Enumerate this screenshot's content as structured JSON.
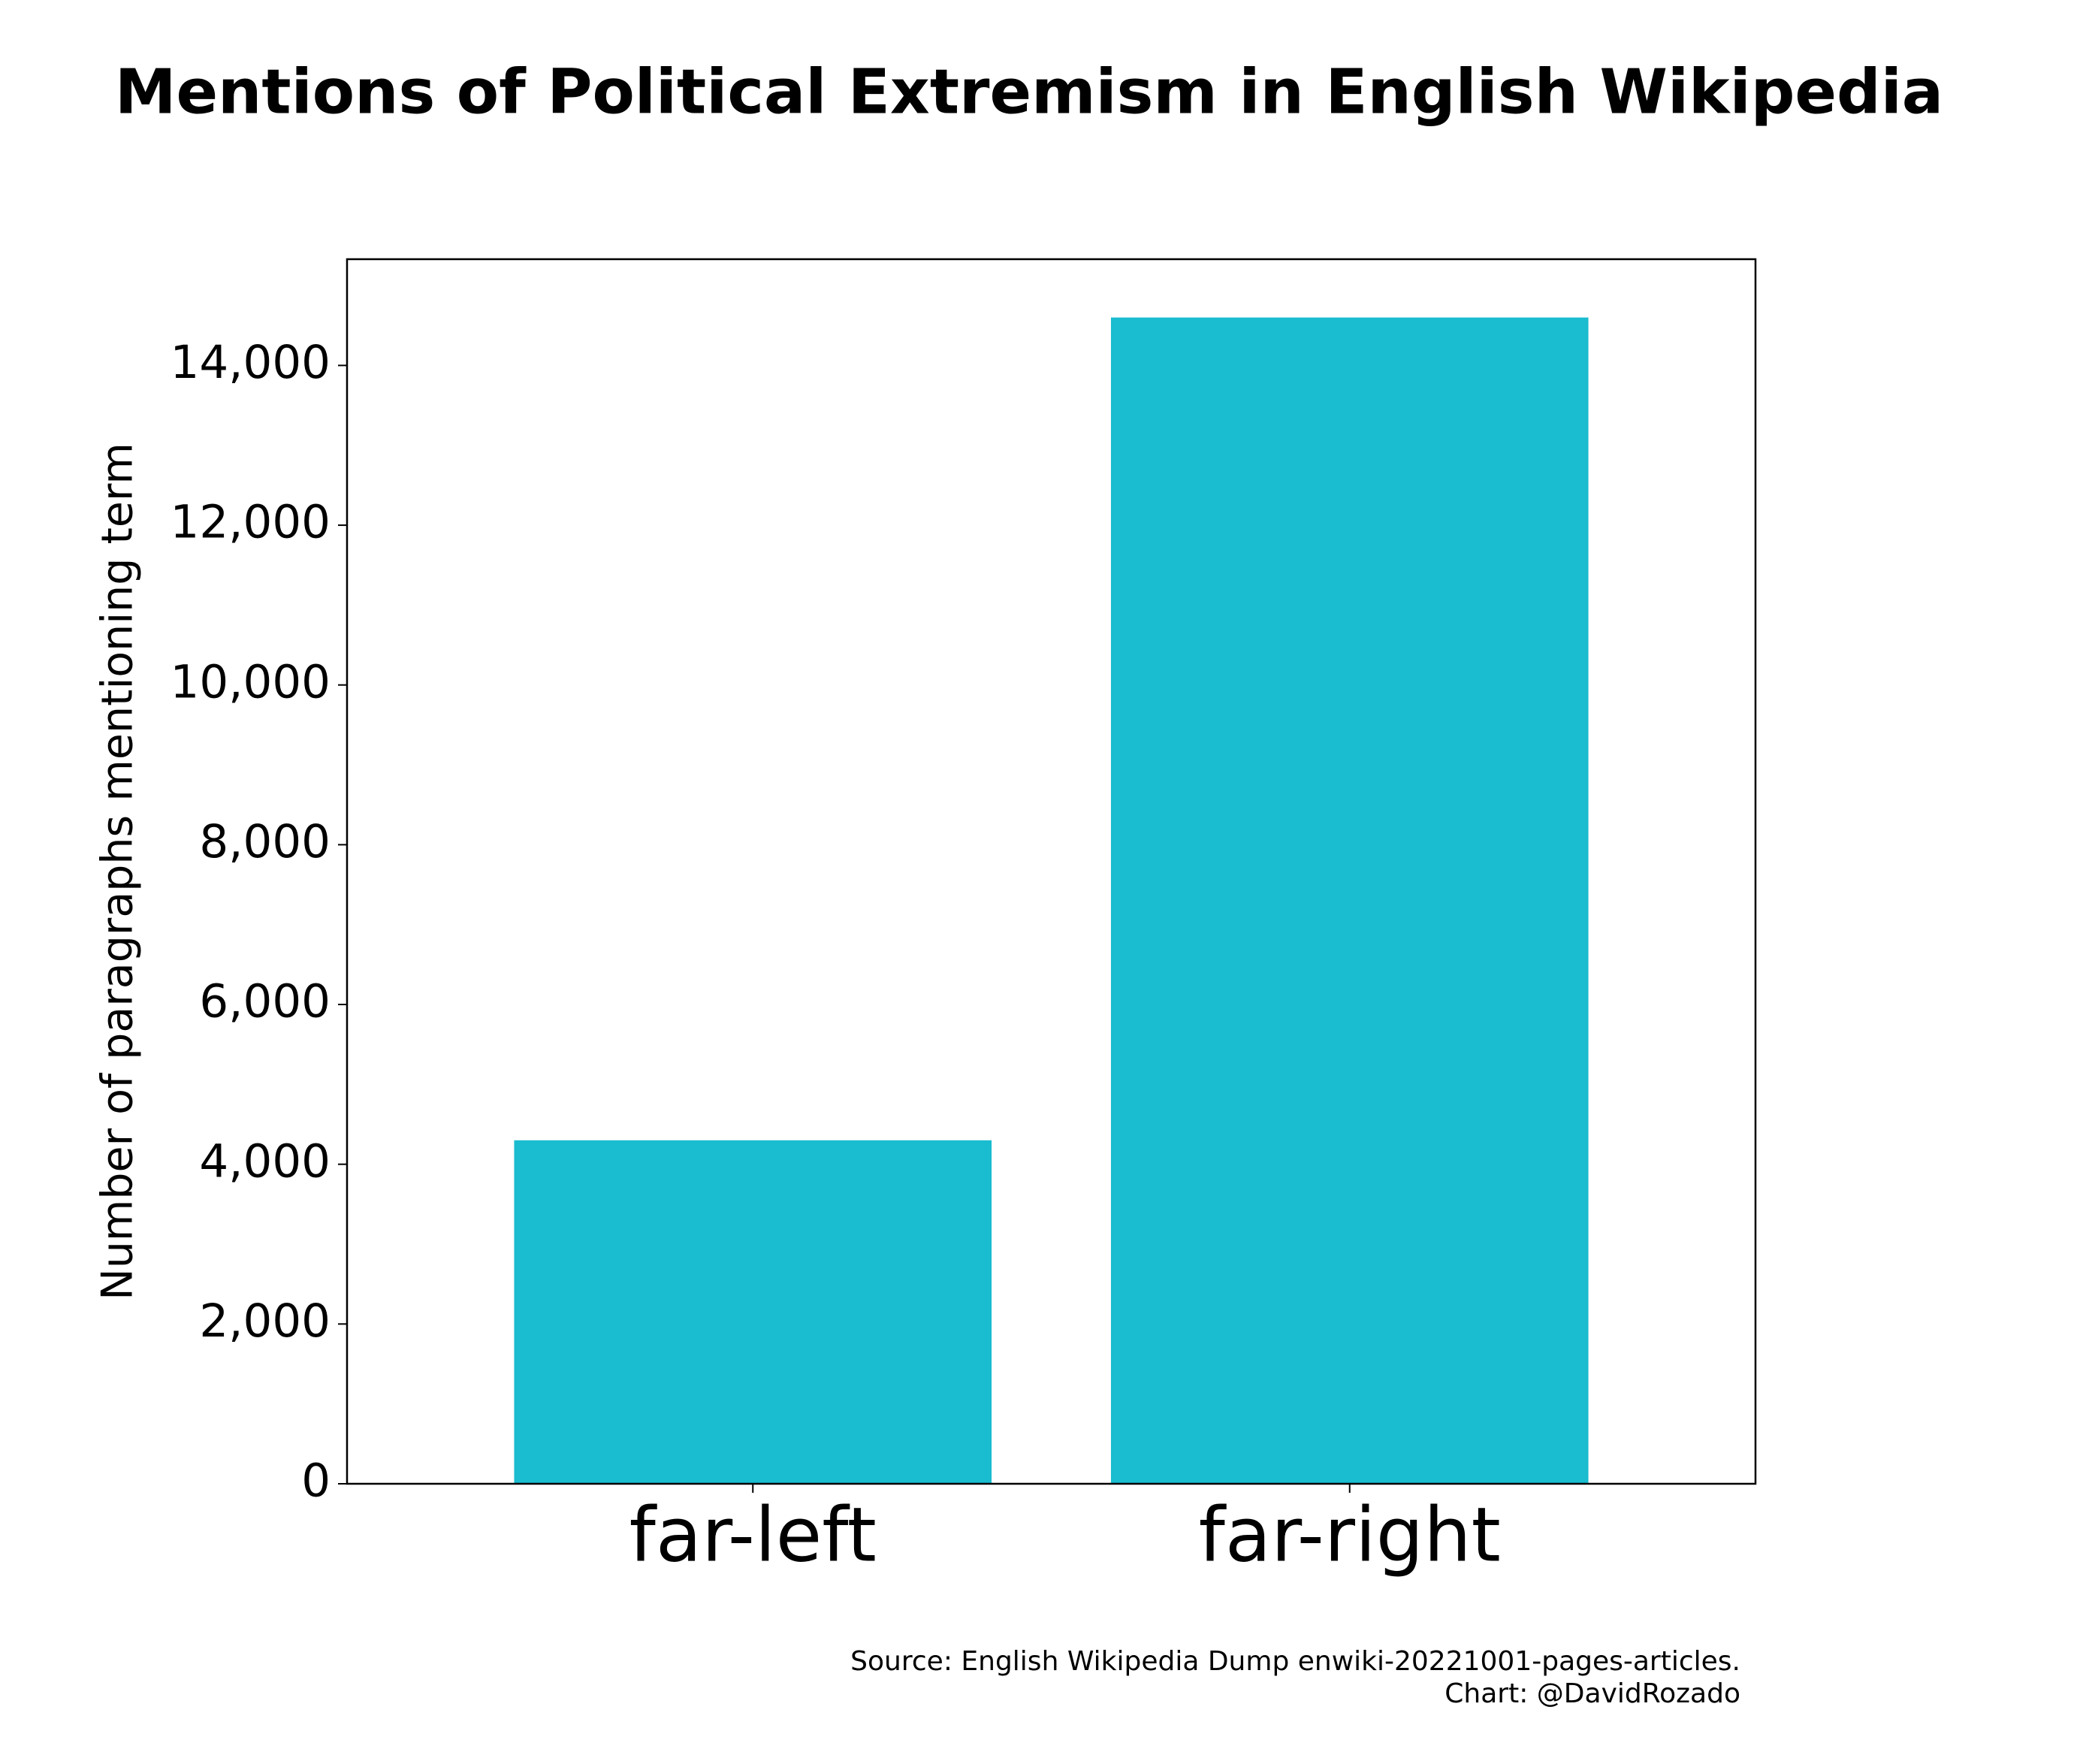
{
  "chart_data": {
    "type": "bar",
    "title": "Mentions of Political Extremism in English Wikipedia",
    "y_label": "Number of paragraphs mentioning term",
    "categories": [
      "far-left",
      "far-right"
    ],
    "values": [
      4300,
      14600
    ],
    "color": "#1abccf",
    "ylim": [
      0,
      15330
    ],
    "yticks": [
      0,
      {
        "value": 2000,
        "label": "2,000"
      },
      {
        "value": 4000,
        "label": "4,000"
      },
      {
        "value": 6000,
        "label": "6,000"
      },
      {
        "value": 8000,
        "label": "8,000"
      },
      {
        "value": 10000,
        "label": "10,000"
      },
      {
        "value": 12000,
        "label": "12,000"
      },
      {
        "value": 14000,
        "label": "14,000"
      }
    ],
    "grid": false,
    "source": [
      "Source: English Wikipedia Dump enwiki-20221001-pages-articles.",
      "Chart: @DavidRozado"
    ]
  }
}
